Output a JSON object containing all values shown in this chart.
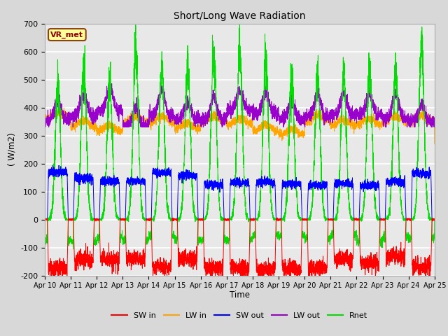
{
  "title": "Short/Long Wave Radiation",
  "ylabel": "( W/m2)",
  "xlabel": "Time",
  "annotation": "VR_met",
  "ylim": [
    -200,
    700
  ],
  "yticks": [
    -200,
    -100,
    0,
    100,
    200,
    300,
    400,
    500,
    600,
    700
  ],
  "xtick_labels": [
    "Apr 10",
    "Apr 11",
    "Apr 12",
    "Apr 13",
    "Apr 14",
    "Apr 15",
    "Apr 16",
    "Apr 17",
    "Apr 18",
    "Apr 19",
    "Apr 20",
    "Apr 21",
    "Apr 22",
    "Apr 23",
    "Apr 24",
    "Apr 25"
  ],
  "legend_entries": [
    "SW in",
    "LW in",
    "SW out",
    "LW out",
    "Rnet"
  ],
  "line_colors": {
    "SW_in": "#ff0000",
    "LW_in": "#ffa500",
    "SW_out": "#0000ff",
    "LW_out": "#9900cc",
    "Rnet": "#00dd00"
  },
  "fig_bg": "#d8d8d8",
  "plot_bg": "#e8e8e8",
  "n_days": 15,
  "pts_per_day": 288
}
